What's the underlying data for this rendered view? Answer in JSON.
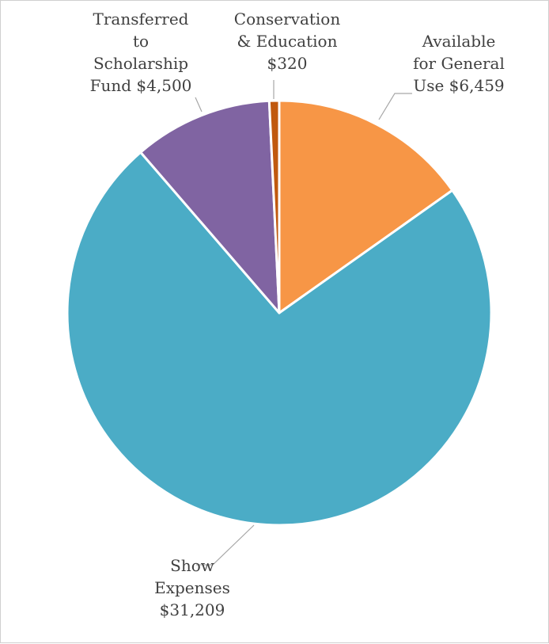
{
  "chart_data": {
    "type": "pie",
    "title": "",
    "legend": "none",
    "slices": [
      {
        "label_lines": [
          "Available",
          "for General",
          "Use  $6,459"
        ],
        "value": 6459,
        "color": "#F79646"
      },
      {
        "label_lines": [
          "Show",
          "Expenses",
          "$31,209"
        ],
        "value": 31209,
        "color": "#4BACC6"
      },
      {
        "label_lines": [
          "Transferred",
          "to",
          "Scholarship",
          "Fund  $4,500"
        ],
        "value": 4500,
        "color": "#8064A2"
      },
      {
        "label_lines": [
          "Conservation",
          "& Education",
          "$320"
        ],
        "value": 320,
        "color": "#C0590F"
      }
    ]
  }
}
